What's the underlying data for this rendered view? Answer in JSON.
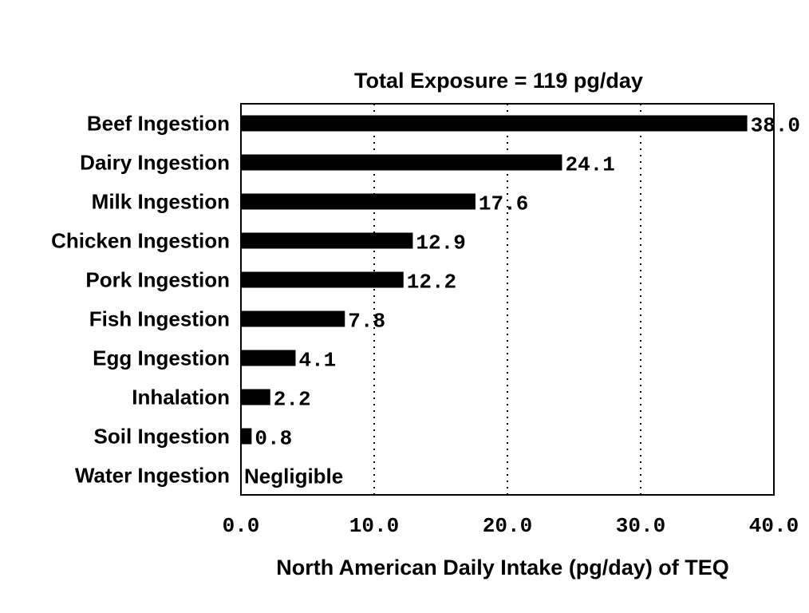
{
  "chart_data": {
    "type": "bar",
    "orientation": "horizontal",
    "title": "Total Exposure = 119 pg/day",
    "xlabel": "North American Daily Intake (pg/day) of TEQ",
    "ylabel": "",
    "xlim": [
      0,
      40
    ],
    "x_ticks": [
      "0.0",
      "10.0",
      "20.0",
      "30.0",
      "40.0"
    ],
    "grid": "vertical dotted lines at 10, 20, 30",
    "legend": "none",
    "bar_color": "#000000",
    "categories": [
      "Beef Ingestion",
      "Dairy Ingestion",
      "Milk Ingestion",
      "Chicken Ingestion",
      "Pork Ingestion",
      "Fish Ingestion",
      "Egg Ingestion",
      "Inhalation",
      "Soil Ingestion",
      "Water Ingestion"
    ],
    "values": [
      38.0,
      24.1,
      17.6,
      12.9,
      12.2,
      7.8,
      4.1,
      2.2,
      0.8,
      null
    ],
    "data_labels": [
      "38.0",
      "24.1",
      "17.6",
      "12.9",
      "12.2",
      "7.8",
      "4.1",
      "2.2",
      "0.8",
      "Negligible"
    ]
  }
}
